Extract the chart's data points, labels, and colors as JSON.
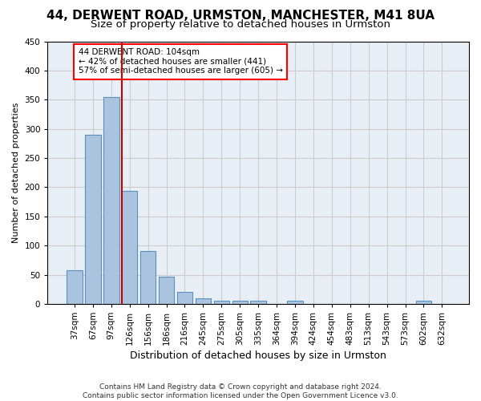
{
  "title1": "44, DERWENT ROAD, URMSTON, MANCHESTER, M41 8UA",
  "title2": "Size of property relative to detached houses in Urmston",
  "xlabel": "Distribution of detached houses by size in Urmston",
  "ylabel": "Number of detached properties",
  "categories": [
    "37sqm",
    "67sqm",
    "97sqm",
    "126sqm",
    "156sqm",
    "186sqm",
    "216sqm",
    "245sqm",
    "275sqm",
    "305sqm",
    "335sqm",
    "364sqm",
    "394sqm",
    "424sqm",
    "454sqm",
    "483sqm",
    "513sqm",
    "543sqm",
    "573sqm",
    "602sqm",
    "632sqm"
  ],
  "values": [
    57,
    290,
    355,
    193,
    91,
    47,
    20,
    9,
    5,
    5,
    5,
    0,
    5,
    0,
    0,
    0,
    0,
    0,
    0,
    5,
    0
  ],
  "bar_color": "#aac4e0",
  "bar_edge_color": "#5a90be",
  "vline_color": "#cc0000",
  "vline_position": 2.575,
  "annotation_text": "44 DERWENT ROAD: 104sqm\n← 42% of detached houses are smaller (441)\n57% of semi-detached houses are larger (605) →",
  "ylim": [
    0,
    450
  ],
  "yticks": [
    0,
    50,
    100,
    150,
    200,
    250,
    300,
    350,
    400,
    450
  ],
  "grid_color": "#cccccc",
  "bg_color": "#e8eef5",
  "footer": "Contains HM Land Registry data © Crown copyright and database right 2024.\nContains public sector information licensed under the Open Government Licence v3.0.",
  "title1_fontsize": 11,
  "title2_fontsize": 9.5,
  "xlabel_fontsize": 9,
  "ylabel_fontsize": 8,
  "tick_fontsize": 7.5,
  "footer_fontsize": 6.5,
  "annot_fontsize": 7.5
}
